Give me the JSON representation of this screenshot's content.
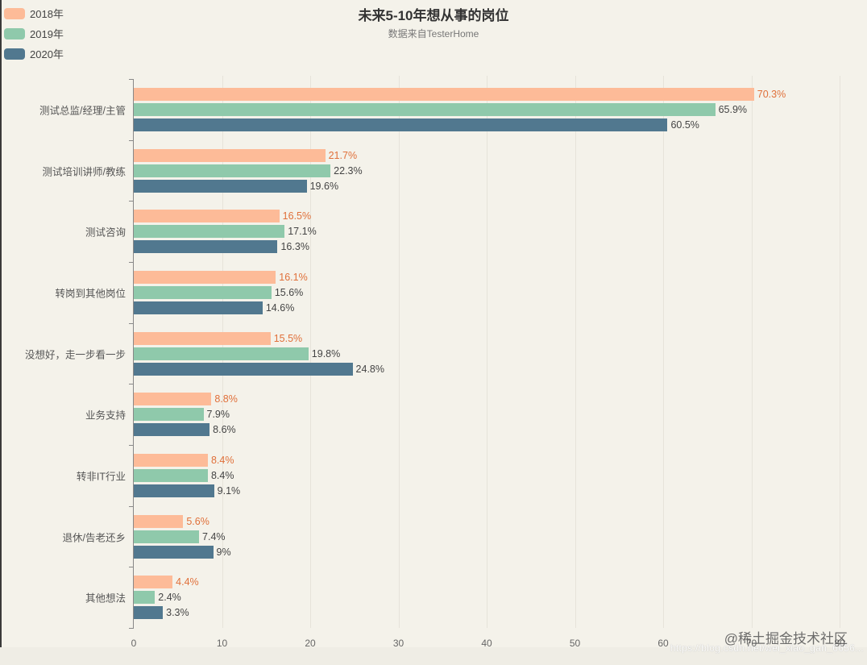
{
  "chart_data": {
    "type": "bar",
    "orientation": "horizontal",
    "title": "未来5-10年想从事的岗位",
    "subtitle": "数据来自TesterHome",
    "xlabel": "",
    "ylabel": "",
    "xlim": [
      0,
      80
    ],
    "x_ticks": [
      "0",
      "10",
      "20",
      "30",
      "40",
      "50",
      "60",
      "70",
      "80"
    ],
    "grid": true,
    "legend_position": "top-left",
    "categories": [
      "测试总监/经理/主管",
      "测试培训讲师/教练",
      "测试咨询",
      "转岗到其他岗位",
      "没想好，走一步看一步",
      "业务支持",
      "转非IT行业",
      "退休/告老还乡",
      "其他想法"
    ],
    "series": [
      {
        "name": "2018年",
        "color": "#fdbb98",
        "values": [
          70.3,
          21.7,
          16.5,
          16.1,
          15.5,
          8.8,
          8.4,
          5.6,
          4.4
        ],
        "labels": [
          "70.3%",
          "21.7%",
          "16.5%",
          "16.1%",
          "15.5%",
          "8.8%",
          "8.4%",
          "5.6%",
          "4.4%"
        ]
      },
      {
        "name": "2019年",
        "color": "#8fc9ab",
        "values": [
          65.9,
          22.3,
          17.1,
          15.6,
          19.8,
          7.9,
          8.4,
          7.4,
          2.4
        ],
        "labels": [
          "65.9%",
          "22.3%",
          "17.1%",
          "15.6%",
          "19.8%",
          "7.9%",
          "8.4%",
          "7.4%",
          "2.4%"
        ]
      },
      {
        "name": "2020年",
        "color": "#51788f",
        "values": [
          60.5,
          19.6,
          16.3,
          14.6,
          24.8,
          8.6,
          9.1,
          9.0,
          3.3
        ],
        "labels": [
          "60.5%",
          "19.6%",
          "16.3%",
          "14.6%",
          "24.8%",
          "8.6%",
          "9.1%",
          "9%",
          "3.3%"
        ]
      }
    ]
  },
  "legend": {
    "items": [
      {
        "label": "2018年",
        "color": "#fdbb98"
      },
      {
        "label": "2019年",
        "color": "#8fc9ab"
      },
      {
        "label": "2020年",
        "color": "#51788f"
      }
    ]
  },
  "watermark": {
    "text": "@稀土掘金技术社区",
    "url": "https://blog.csdn.net/wei_xiao_gan_6656..."
  }
}
